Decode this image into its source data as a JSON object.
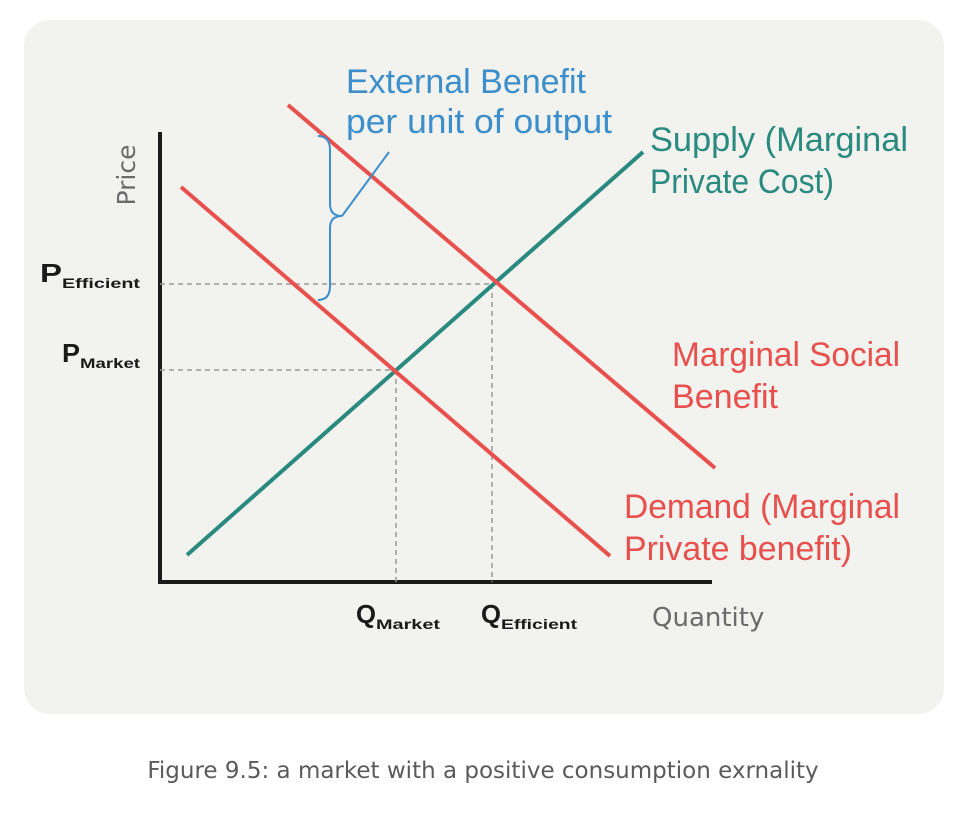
{
  "chart_data": {
    "type": "line",
    "ylabel": "Price",
    "xlabel": "Quantity",
    "x_ticks": [
      {
        "main": "Q",
        "sub": "Market"
      },
      {
        "main": "Q",
        "sub": "Efficient"
      }
    ],
    "y_ticks": [
      {
        "main": "P",
        "sub": "Efficient"
      },
      {
        "main": "P",
        "sub": "Market"
      }
    ],
    "series": [
      {
        "name": "Supply (Marginal Private Cost)",
        "label_lines": [
          "Supply (Marginal",
          "Private Cost)"
        ],
        "color": "#2a8a80"
      },
      {
        "name": "Marginal Social Benefit",
        "label_lines": [
          "Marginal Social",
          "Benefit"
        ],
        "color": "#e8504d"
      },
      {
        "name": "Demand (Marginal Private benefit)",
        "label_lines": [
          "Demand (Marginal",
          "Private benefit)"
        ],
        "color": "#e8504d"
      }
    ],
    "annotation": {
      "label_lines": [
        "External Benefit",
        "per unit of output"
      ],
      "color": "#3c8fcb"
    },
    "grid": false,
    "legend": "none"
  },
  "caption": "Figure 9.5: a market with a positive consumption exrnality"
}
